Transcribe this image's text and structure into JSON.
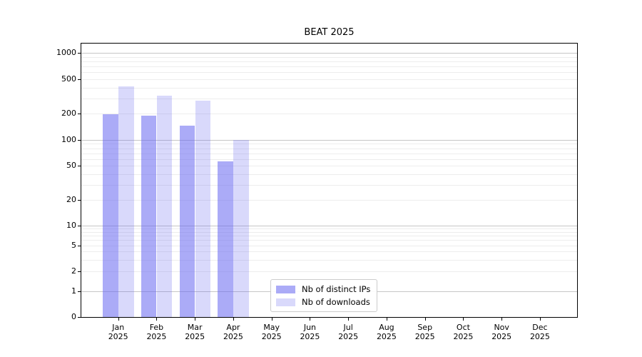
{
  "chart_data": {
    "type": "bar",
    "title": "BEAT 2025",
    "categories": [
      "Jan",
      "Feb",
      "Mar",
      "Apr",
      "May",
      "Jun",
      "Jul",
      "Aug",
      "Sep",
      "Oct",
      "Nov",
      "Dec"
    ],
    "category_year": "2025",
    "series": [
      {
        "name": "Nb of distinct IPs",
        "color": "rgba(102,102,240,0.55)",
        "values": [
          197,
          190,
          146,
          56,
          0,
          0,
          0,
          0,
          0,
          0,
          0,
          0
        ]
      },
      {
        "name": "Nb of downloads",
        "color": "rgba(102,102,240,0.25)",
        "values": [
          410,
          325,
          280,
          100,
          0,
          0,
          0,
          0,
          0,
          0,
          0,
          0
        ]
      }
    ],
    "y_ticks": [
      0,
      1,
      2,
      5,
      10,
      20,
      50,
      100,
      200,
      500,
      1000
    ],
    "y_scale": "symlog",
    "ylim": [
      0,
      1300
    ],
    "grid": true,
    "legend_position": "lower-center",
    "colors": {
      "bar_distinct_ips": "rgba(102,102,240,0.55)",
      "bar_downloads": "rgba(102,102,240,0.25)",
      "grid_major": "#c6c6c6",
      "grid_minor": "#ededed",
      "spine": "#000000"
    }
  }
}
